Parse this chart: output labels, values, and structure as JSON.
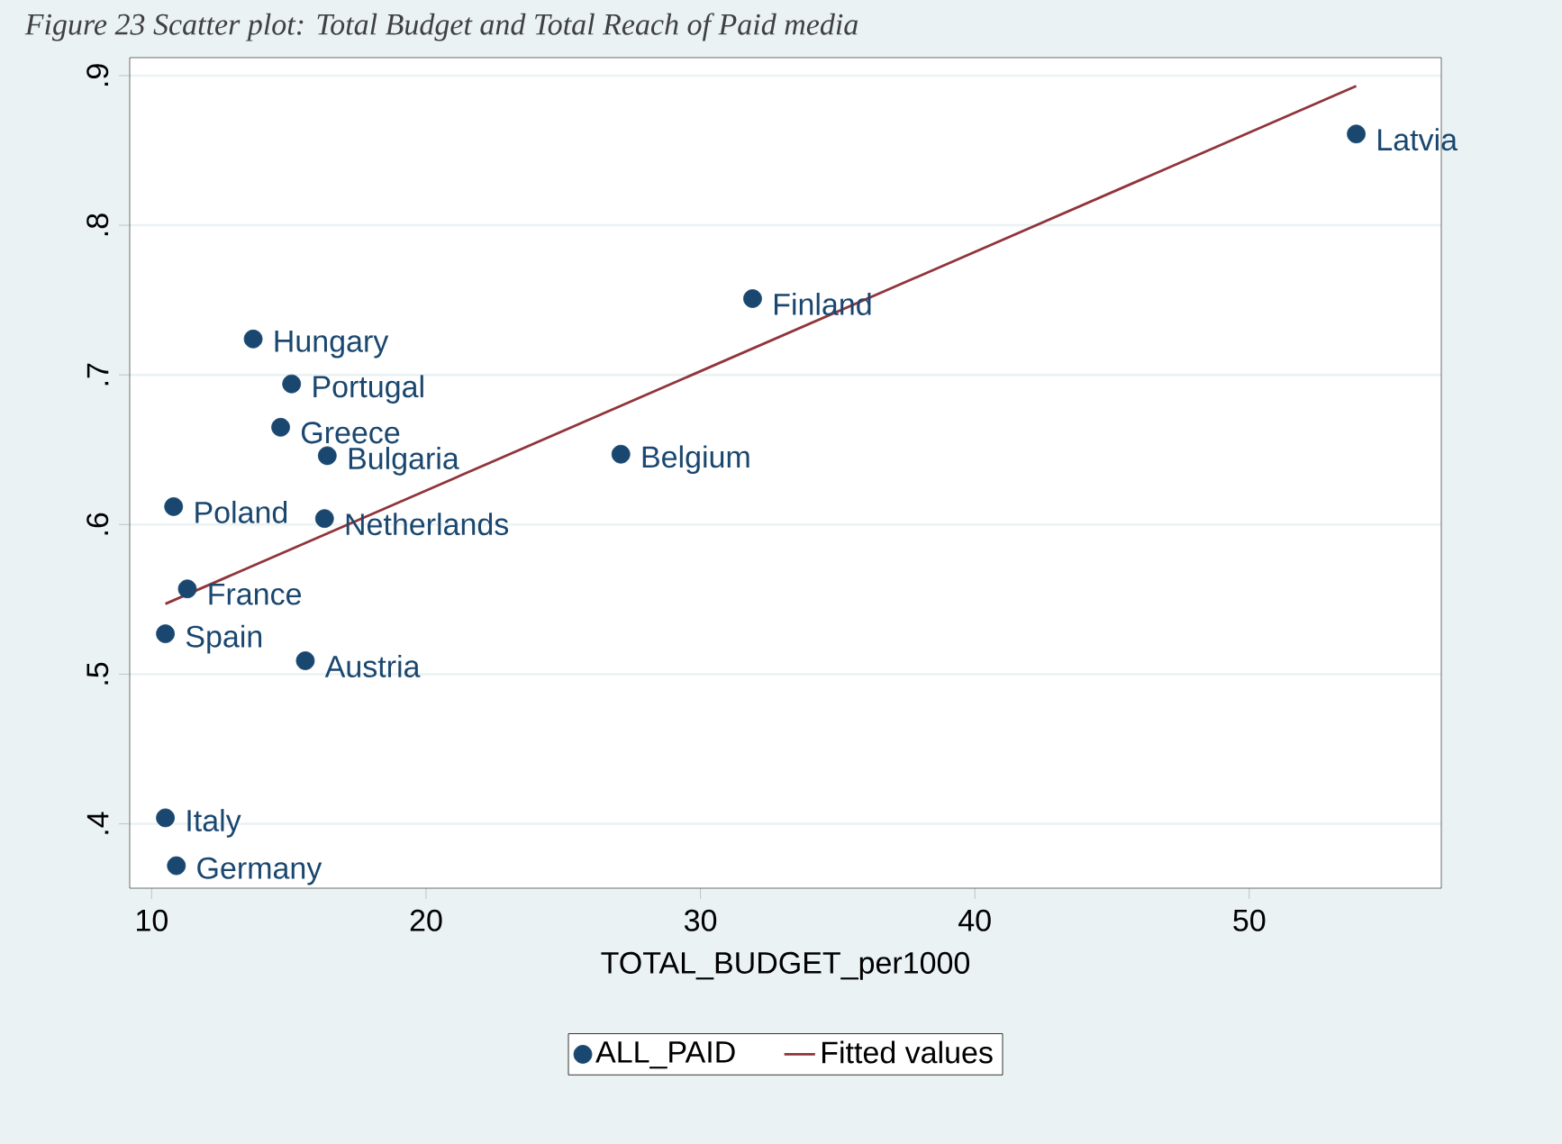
{
  "chart_data": {
    "type": "scatter",
    "title": "Figure 23 Scatter plot: Total Budget and Total Reach of Paid media",
    "xlabel": "TOTAL_BUDGET_per1000",
    "xlim": [
      9.2,
      57
    ],
    "ylim": [
      0.357,
      0.912
    ],
    "xticks": [
      10,
      20,
      30,
      40,
      50
    ],
    "yticks": [
      {
        "value": 0.4,
        "label": ".4"
      },
      {
        "value": 0.5,
        "label": ".5"
      },
      {
        "value": 0.6,
        "label": ".6"
      },
      {
        "value": 0.7,
        "label": ".7"
      },
      {
        "value": 0.8,
        "label": ".8"
      },
      {
        "value": 0.9,
        "label": ".9"
      }
    ],
    "grid": "y",
    "legend": "bottom",
    "series": [
      {
        "name": "ALL_PAID",
        "marker": "circle",
        "color": "#1a476f",
        "x": [
          13.7,
          15.1,
          14.7,
          16.4,
          10.8,
          16.3,
          11.3,
          10.5,
          15.6,
          10.5,
          10.9,
          31.9,
          27.1,
          53.9
        ],
        "values": [
          0.724,
          0.694,
          0.665,
          0.646,
          0.612,
          0.604,
          0.557,
          0.527,
          0.509,
          0.404,
          0.372,
          0.751,
          0.647,
          0.861
        ]
      },
      {
        "name": "Fitted values",
        "type": "line",
        "marker": "none",
        "color": "#90353b",
        "x": [
          10.5,
          53.9
        ],
        "values": [
          0.547,
          0.893
        ]
      }
    ],
    "annotations": [
      {
        "text": "Hungary",
        "x": 13.7,
        "y": 0.724
      },
      {
        "text": "Portugal",
        "x": 15.1,
        "y": 0.694
      },
      {
        "text": "Greece",
        "x": 14.7,
        "y": 0.665
      },
      {
        "text": "Bulgaria",
        "x": 16.4,
        "y": 0.646
      },
      {
        "text": "Poland",
        "x": 10.8,
        "y": 0.612
      },
      {
        "text": "Netherlands",
        "x": 16.3,
        "y": 0.604
      },
      {
        "text": "France",
        "x": 11.3,
        "y": 0.557
      },
      {
        "text": "Spain",
        "x": 10.5,
        "y": 0.527
      },
      {
        "text": "Austria",
        "x": 15.6,
        "y": 0.509
      },
      {
        "text": "Italy",
        "x": 10.5,
        "y": 0.404
      },
      {
        "text": "Germany",
        "x": 10.9,
        "y": 0.372
      },
      {
        "text": "Finland",
        "x": 31.9,
        "y": 0.751
      },
      {
        "text": "Belgium",
        "x": 27.1,
        "y": 0.647
      },
      {
        "text": "Latvia",
        "x": 53.9,
        "y": 0.861
      }
    ]
  }
}
